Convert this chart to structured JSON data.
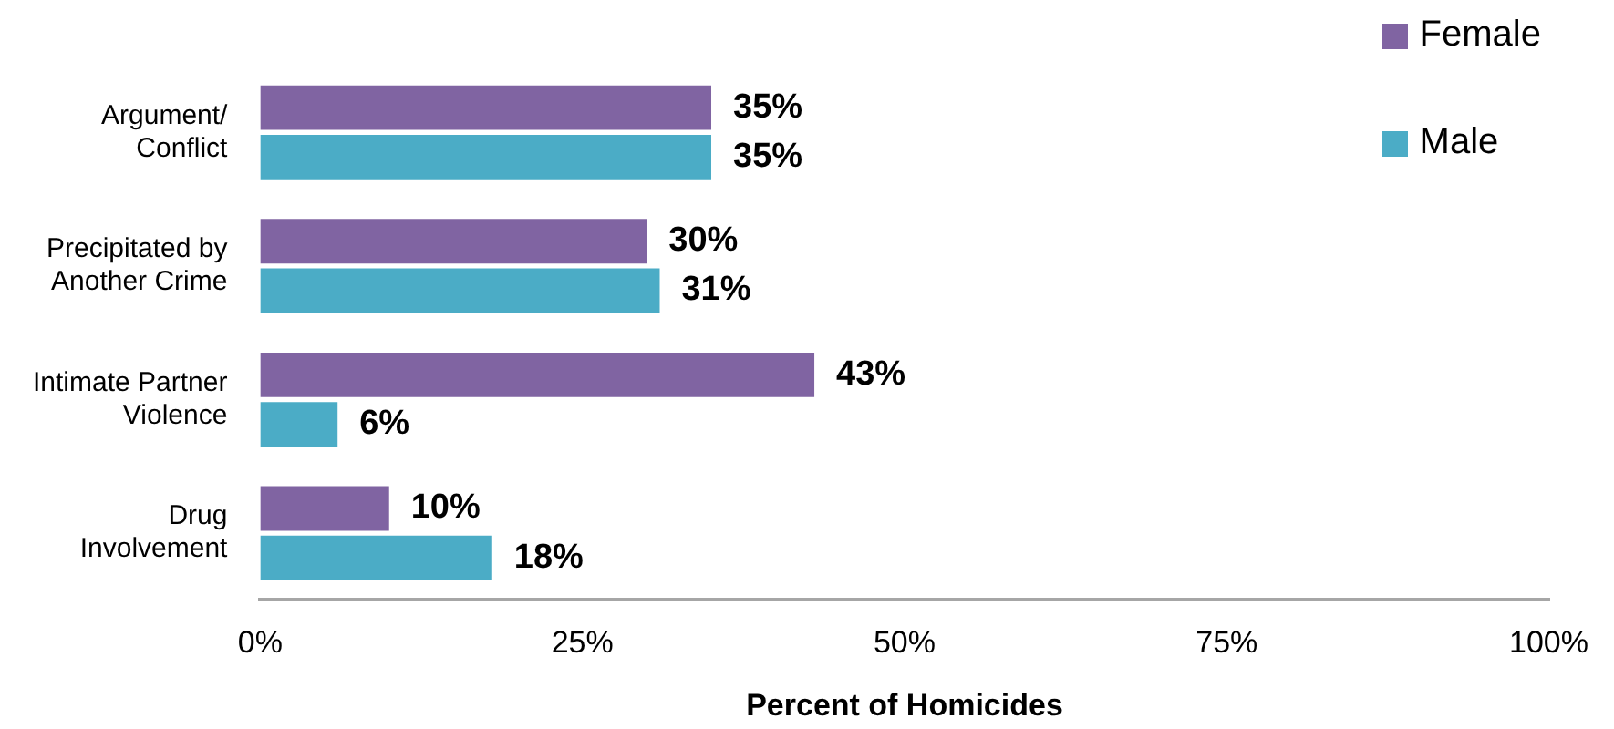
{
  "chart_data": {
    "type": "bar",
    "orientation": "horizontal",
    "xlabel": "Percent of Homicides",
    "categories": [
      "Argument/\nConflict",
      "Precipitated by\nAnother Crime",
      "Intimate Partner\nViolence",
      "Drug\nInvolvement"
    ],
    "series": [
      {
        "name": "Female",
        "color": "#8064a2",
        "values": [
          35,
          30,
          43,
          10
        ],
        "value_labels": [
          "35%",
          "30%",
          "43%",
          "10%"
        ]
      },
      {
        "name": "Male",
        "color": "#4bacc6",
        "values": [
          35,
          31,
          6,
          18
        ],
        "value_labels": [
          "35%",
          "31%",
          "6%",
          "18%"
        ]
      }
    ],
    "xlim": [
      0,
      100
    ],
    "xticks": [
      {
        "value": 0,
        "label": "0%"
      },
      {
        "value": 25,
        "label": "25%"
      },
      {
        "value": 50,
        "label": "50%"
      },
      {
        "value": 75,
        "label": "75%"
      },
      {
        "value": 100,
        "label": "100%"
      }
    ],
    "grid": false,
    "legend": "top right"
  }
}
